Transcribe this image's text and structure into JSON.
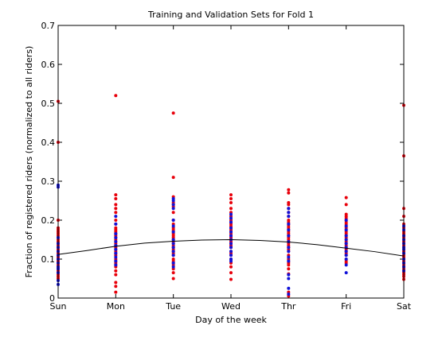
{
  "chart_data": {
    "type": "scatter",
    "title": "Training and Validation Sets for Fold 1",
    "xlabel": "Day of the week",
    "ylabel": "Fraction of registered riders (normalized to all riders)",
    "categories": [
      "Sun",
      "Mon",
      "Tue",
      "Wed",
      "Thr",
      "Fri",
      "Sat"
    ],
    "x_range": [
      0,
      6
    ],
    "ylim": [
      0,
      0.7
    ],
    "y_ticks": [
      "0",
      "0.1",
      "0.2",
      "0.3",
      "0.4",
      "0.5",
      "0.6",
      "0.7"
    ],
    "grid": false,
    "colors": {
      "red_series": "#e8000b",
      "blue_series": "#1010d8",
      "curve": "#000000"
    },
    "series": [
      {
        "marker": "red-dots",
        "points": [
          [
            0,
            0.505
          ],
          [
            0,
            0.4
          ],
          [
            0,
            0.2
          ],
          [
            0,
            0.18
          ],
          [
            0,
            0.175
          ],
          [
            0,
            0.17
          ],
          [
            0,
            0.165
          ],
          [
            0,
            0.16
          ],
          [
            0,
            0.15
          ],
          [
            0,
            0.145
          ],
          [
            0,
            0.14
          ],
          [
            0,
            0.135
          ],
          [
            0,
            0.13
          ],
          [
            0,
            0.125
          ],
          [
            0,
            0.12
          ],
          [
            0,
            0.115
          ],
          [
            0,
            0.11
          ],
          [
            0,
            0.105
          ],
          [
            0,
            0.1
          ],
          [
            0,
            0.095
          ],
          [
            0,
            0.09
          ],
          [
            0,
            0.085
          ],
          [
            0,
            0.08
          ],
          [
            0,
            0.075
          ],
          [
            0,
            0.07
          ],
          [
            0,
            0.065
          ],
          [
            0,
            0.06
          ],
          [
            0,
            0.055
          ],
          [
            0,
            0.05
          ],
          [
            1,
            0.52
          ],
          [
            1,
            0.265
          ],
          [
            1,
            0.255
          ],
          [
            1,
            0.24
          ],
          [
            1,
            0.23
          ],
          [
            1,
            0.22
          ],
          [
            1,
            0.2
          ],
          [
            1,
            0.19
          ],
          [
            1,
            0.18
          ],
          [
            1,
            0.175
          ],
          [
            1,
            0.17
          ],
          [
            1,
            0.165
          ],
          [
            1,
            0.16
          ],
          [
            1,
            0.155
          ],
          [
            1,
            0.15
          ],
          [
            1,
            0.145
          ],
          [
            1,
            0.14
          ],
          [
            1,
            0.135
          ],
          [
            1,
            0.13
          ],
          [
            1,
            0.125
          ],
          [
            1,
            0.12
          ],
          [
            1,
            0.115
          ],
          [
            1,
            0.11
          ],
          [
            1,
            0.1
          ],
          [
            1,
            0.095
          ],
          [
            1,
            0.09
          ],
          [
            1,
            0.085
          ],
          [
            1,
            0.08
          ],
          [
            1,
            0.07
          ],
          [
            1,
            0.06
          ],
          [
            1,
            0.04
          ],
          [
            1,
            0.03
          ],
          [
            1,
            0.015
          ],
          [
            2,
            0.475
          ],
          [
            2,
            0.31
          ],
          [
            2,
            0.26
          ],
          [
            2,
            0.245
          ],
          [
            2,
            0.24
          ],
          [
            2,
            0.235
          ],
          [
            2,
            0.22
          ],
          [
            2,
            0.2
          ],
          [
            2,
            0.19
          ],
          [
            2,
            0.18
          ],
          [
            2,
            0.175
          ],
          [
            2,
            0.17
          ],
          [
            2,
            0.165
          ],
          [
            2,
            0.16
          ],
          [
            2,
            0.155
          ],
          [
            2,
            0.15
          ],
          [
            2,
            0.145
          ],
          [
            2,
            0.14
          ],
          [
            2,
            0.135
          ],
          [
            2,
            0.13
          ],
          [
            2,
            0.125
          ],
          [
            2,
            0.12
          ],
          [
            2,
            0.115
          ],
          [
            2,
            0.11
          ],
          [
            2,
            0.1
          ],
          [
            2,
            0.095
          ],
          [
            2,
            0.09
          ],
          [
            2,
            0.085
          ],
          [
            2,
            0.075
          ],
          [
            2,
            0.065
          ],
          [
            2,
            0.05
          ],
          [
            3,
            0.265
          ],
          [
            3,
            0.255
          ],
          [
            3,
            0.245
          ],
          [
            3,
            0.23
          ],
          [
            3,
            0.22
          ],
          [
            3,
            0.21
          ],
          [
            3,
            0.2
          ],
          [
            3,
            0.195
          ],
          [
            3,
            0.19
          ],
          [
            3,
            0.185
          ],
          [
            3,
            0.18
          ],
          [
            3,
            0.175
          ],
          [
            3,
            0.17
          ],
          [
            3,
            0.165
          ],
          [
            3,
            0.16
          ],
          [
            3,
            0.155
          ],
          [
            3,
            0.15
          ],
          [
            3,
            0.145
          ],
          [
            3,
            0.14
          ],
          [
            3,
            0.135
          ],
          [
            3,
            0.13
          ],
          [
            3,
            0.12
          ],
          [
            3,
            0.115
          ],
          [
            3,
            0.11
          ],
          [
            3,
            0.1
          ],
          [
            3,
            0.09
          ],
          [
            3,
            0.08
          ],
          [
            3,
            0.065
          ],
          [
            3,
            0.048
          ],
          [
            4,
            0.278
          ],
          [
            4,
            0.27
          ],
          [
            4,
            0.245
          ],
          [
            4,
            0.24
          ],
          [
            4,
            0.23
          ],
          [
            4,
            0.22
          ],
          [
            4,
            0.21
          ],
          [
            4,
            0.2
          ],
          [
            4,
            0.195
          ],
          [
            4,
            0.19
          ],
          [
            4,
            0.185
          ],
          [
            4,
            0.18
          ],
          [
            4,
            0.175
          ],
          [
            4,
            0.17
          ],
          [
            4,
            0.165
          ],
          [
            4,
            0.16
          ],
          [
            4,
            0.155
          ],
          [
            4,
            0.15
          ],
          [
            4,
            0.145
          ],
          [
            4,
            0.14
          ],
          [
            4,
            0.135
          ],
          [
            4,
            0.13
          ],
          [
            4,
            0.125
          ],
          [
            4,
            0.12
          ],
          [
            4,
            0.11
          ],
          [
            4,
            0.1
          ],
          [
            4,
            0.095
          ],
          [
            4,
            0.09
          ],
          [
            4,
            0.085
          ],
          [
            4,
            0.075
          ],
          [
            4,
            0.062
          ],
          [
            4,
            0.015
          ],
          [
            4,
            0.005
          ],
          [
            5,
            0.258
          ],
          [
            5,
            0.24
          ],
          [
            5,
            0.215
          ],
          [
            5,
            0.21
          ],
          [
            5,
            0.205
          ],
          [
            5,
            0.2
          ],
          [
            5,
            0.195
          ],
          [
            5,
            0.19
          ],
          [
            5,
            0.185
          ],
          [
            5,
            0.18
          ],
          [
            5,
            0.175
          ],
          [
            5,
            0.17
          ],
          [
            5,
            0.165
          ],
          [
            5,
            0.16
          ],
          [
            5,
            0.155
          ],
          [
            5,
            0.15
          ],
          [
            5,
            0.145
          ],
          [
            5,
            0.14
          ],
          [
            5,
            0.135
          ],
          [
            5,
            0.13
          ],
          [
            5,
            0.125
          ],
          [
            5,
            0.12
          ],
          [
            5,
            0.115
          ],
          [
            5,
            0.11
          ],
          [
            5,
            0.1
          ],
          [
            5,
            0.095
          ],
          [
            5,
            0.09
          ],
          [
            6,
            0.495
          ],
          [
            6,
            0.365
          ],
          [
            6,
            0.23
          ],
          [
            6,
            0.21
          ],
          [
            6,
            0.19
          ],
          [
            6,
            0.18
          ],
          [
            6,
            0.17
          ],
          [
            6,
            0.165
          ],
          [
            6,
            0.16
          ],
          [
            6,
            0.155
          ],
          [
            6,
            0.15
          ],
          [
            6,
            0.145
          ],
          [
            6,
            0.14
          ],
          [
            6,
            0.135
          ],
          [
            6,
            0.13
          ],
          [
            6,
            0.125
          ],
          [
            6,
            0.12
          ],
          [
            6,
            0.115
          ],
          [
            6,
            0.11
          ],
          [
            6,
            0.105
          ],
          [
            6,
            0.1
          ],
          [
            6,
            0.095
          ],
          [
            6,
            0.09
          ],
          [
            6,
            0.085
          ],
          [
            6,
            0.08
          ],
          [
            6,
            0.075
          ],
          [
            6,
            0.07
          ],
          [
            6,
            0.065
          ],
          [
            6,
            0.06
          ],
          [
            6,
            0.055
          ],
          [
            6,
            0.048
          ]
        ]
      },
      {
        "marker": "blue-dots",
        "points": [
          [
            0,
            0.29
          ],
          [
            0,
            0.285
          ],
          [
            0,
            0.155
          ],
          [
            0,
            0.14
          ],
          [
            0,
            0.13
          ],
          [
            0,
            0.12
          ],
          [
            0,
            0.11
          ],
          [
            0,
            0.1
          ],
          [
            0,
            0.09
          ],
          [
            0,
            0.08
          ],
          [
            0,
            0.075
          ],
          [
            0,
            0.065
          ],
          [
            0,
            0.045
          ],
          [
            0,
            0.035
          ],
          [
            1,
            0.21
          ],
          [
            1,
            0.19
          ],
          [
            1,
            0.165
          ],
          [
            1,
            0.155
          ],
          [
            1,
            0.145
          ],
          [
            1,
            0.135
          ],
          [
            1,
            0.125
          ],
          [
            1,
            0.115
          ],
          [
            1,
            0.105
          ],
          [
            1,
            0.095
          ],
          [
            1,
            0.085
          ],
          [
            2,
            0.255
          ],
          [
            2,
            0.25
          ],
          [
            2,
            0.24
          ],
          [
            2,
            0.23
          ],
          [
            2,
            0.2
          ],
          [
            2,
            0.185
          ],
          [
            2,
            0.17
          ],
          [
            2,
            0.15
          ],
          [
            2,
            0.14
          ],
          [
            2,
            0.13
          ],
          [
            2,
            0.12
          ],
          [
            2,
            0.11
          ],
          [
            2,
            0.09
          ],
          [
            2,
            0.08
          ],
          [
            3,
            0.215
          ],
          [
            3,
            0.205
          ],
          [
            3,
            0.195
          ],
          [
            3,
            0.18
          ],
          [
            3,
            0.17
          ],
          [
            3,
            0.16
          ],
          [
            3,
            0.15
          ],
          [
            3,
            0.14
          ],
          [
            3,
            0.13
          ],
          [
            3,
            0.12
          ],
          [
            3,
            0.11
          ],
          [
            3,
            0.1
          ],
          [
            3,
            0.095
          ],
          [
            4,
            0.23
          ],
          [
            4,
            0.22
          ],
          [
            4,
            0.21
          ],
          [
            4,
            0.19
          ],
          [
            4,
            0.175
          ],
          [
            4,
            0.16
          ],
          [
            4,
            0.145
          ],
          [
            4,
            0.13
          ],
          [
            4,
            0.12
          ],
          [
            4,
            0.105
          ],
          [
            4,
            0.095
          ],
          [
            4,
            0.06
          ],
          [
            4,
            0.05
          ],
          [
            4,
            0.025
          ],
          [
            4,
            0.01
          ],
          [
            5,
            0.2
          ],
          [
            5,
            0.185
          ],
          [
            5,
            0.175
          ],
          [
            5,
            0.16
          ],
          [
            5,
            0.15
          ],
          [
            5,
            0.14
          ],
          [
            5,
            0.13
          ],
          [
            5,
            0.12
          ],
          [
            5,
            0.11
          ],
          [
            5,
            0.1
          ],
          [
            5,
            0.085
          ],
          [
            5,
            0.065
          ],
          [
            6,
            0.185
          ],
          [
            6,
            0.175
          ],
          [
            6,
            0.16
          ],
          [
            6,
            0.15
          ],
          [
            6,
            0.14
          ],
          [
            6,
            0.13
          ],
          [
            6,
            0.125
          ],
          [
            6,
            0.115
          ],
          [
            6,
            0.1
          ],
          [
            6,
            0.09
          ],
          [
            6,
            0.08
          ],
          [
            6,
            0.07
          ]
        ]
      },
      {
        "marker": "black-line",
        "points": [
          [
            0,
            0.112
          ],
          [
            0.5,
            0.122
          ],
          [
            1,
            0.133
          ],
          [
            1.5,
            0.141
          ],
          [
            2,
            0.146
          ],
          [
            2.5,
            0.149
          ],
          [
            3,
            0.15
          ],
          [
            3.5,
            0.148
          ],
          [
            4,
            0.144
          ],
          [
            4.5,
            0.137
          ],
          [
            5,
            0.128
          ],
          [
            5.5,
            0.119
          ],
          [
            6,
            0.108
          ]
        ]
      }
    ]
  }
}
